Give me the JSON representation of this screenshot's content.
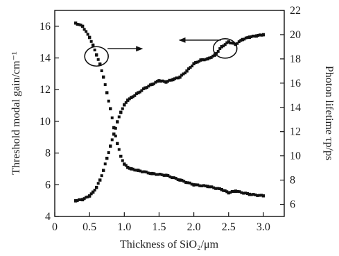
{
  "chart_data": {
    "type": "scatter",
    "title": "",
    "xlabel": "Thickness of SiO₂/μm",
    "ylabel_left": "Threshold modal gain/cm⁻¹",
    "ylabel_right": "Photon lifetime τp/ps",
    "xlim": [
      0,
      3.3
    ],
    "ylim_left": [
      4,
      17
    ],
    "ylim_right": [
      5,
      22
    ],
    "x_ticks": [
      0,
      0.5,
      1.0,
      1.5,
      2.0,
      2.5,
      3.0
    ],
    "x_tick_labels": [
      "0",
      "0.5",
      "1.0",
      "1.5",
      "2.0",
      "2.5",
      "3.0"
    ],
    "y_left_ticks": [
      4,
      6,
      8,
      10,
      12,
      14,
      16
    ],
    "y_left_tick_labels": [
      "4",
      "6",
      "8",
      "10",
      "12",
      "14",
      "16"
    ],
    "y_right_ticks": [
      6,
      8,
      10,
      12,
      14,
      16,
      18,
      20,
      22
    ],
    "y_right_tick_labels": [
      "6",
      "8",
      "10",
      "12",
      "14",
      "16",
      "18",
      "20",
      "22"
    ],
    "series": [
      {
        "axis": "left",
        "x": [
          0.3,
          0.4,
          0.5,
          0.55,
          0.6,
          0.65,
          0.7,
          0.75,
          0.8,
          0.85,
          0.9,
          0.95,
          1.0,
          1.05,
          1.1,
          1.2,
          1.4,
          1.6,
          1.8,
          2.0,
          2.2,
          2.4,
          2.5,
          2.6,
          2.8,
          3.0
        ],
        "y": [
          16.2,
          16.0,
          15.3,
          14.8,
          14.2,
          13.6,
          12.8,
          11.8,
          10.8,
          9.6,
          8.6,
          7.8,
          7.3,
          7.1,
          7.0,
          6.9,
          6.7,
          6.6,
          6.3,
          6.0,
          5.9,
          5.7,
          5.5,
          5.6,
          5.4,
          5.3
        ]
      },
      {
        "axis": "right",
        "x": [
          0.3,
          0.4,
          0.5,
          0.55,
          0.6,
          0.65,
          0.7,
          0.75,
          0.8,
          0.85,
          0.9,
          0.95,
          1.0,
          1.05,
          1.1,
          1.2,
          1.3,
          1.4,
          1.5,
          1.6,
          1.7,
          1.8,
          1.9,
          2.0,
          2.1,
          2.2,
          2.3,
          2.4,
          2.5,
          2.6,
          2.7,
          2.8,
          2.9,
          3.0
        ],
        "y": [
          6.3,
          6.4,
          6.7,
          7.0,
          7.4,
          8.0,
          8.8,
          9.8,
          10.8,
          11.8,
          12.8,
          13.6,
          14.2,
          14.6,
          14.8,
          15.2,
          15.6,
          15.9,
          16.2,
          16.1,
          16.3,
          16.5,
          17.0,
          17.6,
          17.9,
          18.0,
          18.3,
          19.0,
          19.4,
          19.2,
          19.6,
          19.8,
          19.9,
          20.0
        ]
      }
    ],
    "annotations": [
      {
        "type": "circle-arrow",
        "target_series": "left",
        "at_x": 0.6,
        "at_y_left": 14.1,
        "arrow": "right"
      },
      {
        "type": "circle-arrow",
        "target_series": "right",
        "at_x": 2.45,
        "at_y_left": 14.6,
        "arrow": "left"
      }
    ]
  }
}
